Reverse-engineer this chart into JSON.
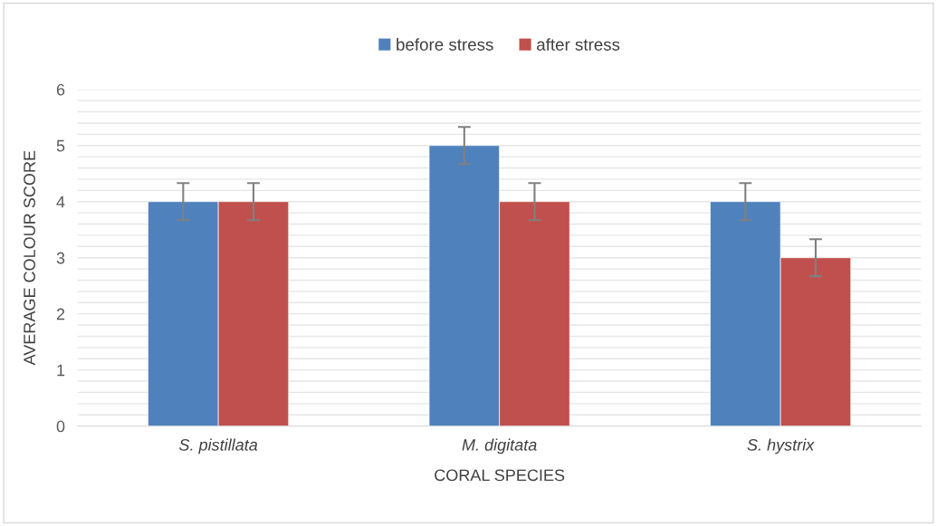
{
  "chart_data": {
    "type": "bar",
    "xlabel": "CORAL SPECIES",
    "ylabel": "AVERAGE COLOUR SCORE",
    "categories": [
      "S. pistillata",
      "M. digitata",
      "S. hystrix"
    ],
    "series": [
      {
        "name": "before stress",
        "color": "#4f81bd",
        "values": [
          4,
          5,
          4
        ],
        "errors": [
          0.33,
          0.33,
          0.33
        ]
      },
      {
        "name": "after stress",
        "color": "#c0504d",
        "values": [
          4,
          4,
          3
        ],
        "errors": [
          0.33,
          0.33,
          0.33
        ]
      }
    ],
    "ylim": [
      0,
      6
    ],
    "yticks": [
      0,
      {
        "value": 0.2,
        "label": null
      },
      {
        "value": 0.4,
        "label": null
      },
      {
        "value": 0.6,
        "label": null
      },
      {
        "value": 0.8,
        "label": null
      },
      1,
      {
        "value": 1.2,
        "label": null
      },
      {
        "value": 1.4,
        "label": null
      },
      {
        "value": 1.6,
        "label": null
      },
      {
        "value": 1.8,
        "label": null
      },
      2,
      {
        "value": 2.2,
        "label": null
      },
      {
        "value": 2.4,
        "label": null
      },
      {
        "value": 2.6,
        "label": null
      },
      {
        "value": 2.8,
        "label": null
      },
      3,
      {
        "value": 3.2,
        "label": null
      },
      {
        "value": 3.4,
        "label": null
      },
      {
        "value": 3.6,
        "label": null
      },
      {
        "value": 3.8,
        "label": null
      },
      4,
      {
        "value": 4.2,
        "label": null
      },
      {
        "value": 4.4,
        "label": null
      },
      {
        "value": 4.6,
        "label": null
      },
      {
        "value": 4.8,
        "label": null
      },
      5,
      {
        "value": 5.2,
        "label": null
      },
      {
        "value": 5.4,
        "label": null
      },
      {
        "value": 5.6,
        "label": null
      },
      {
        "value": 5.8,
        "label": null
      },
      6
    ],
    "grid": "y",
    "legend": "top"
  }
}
